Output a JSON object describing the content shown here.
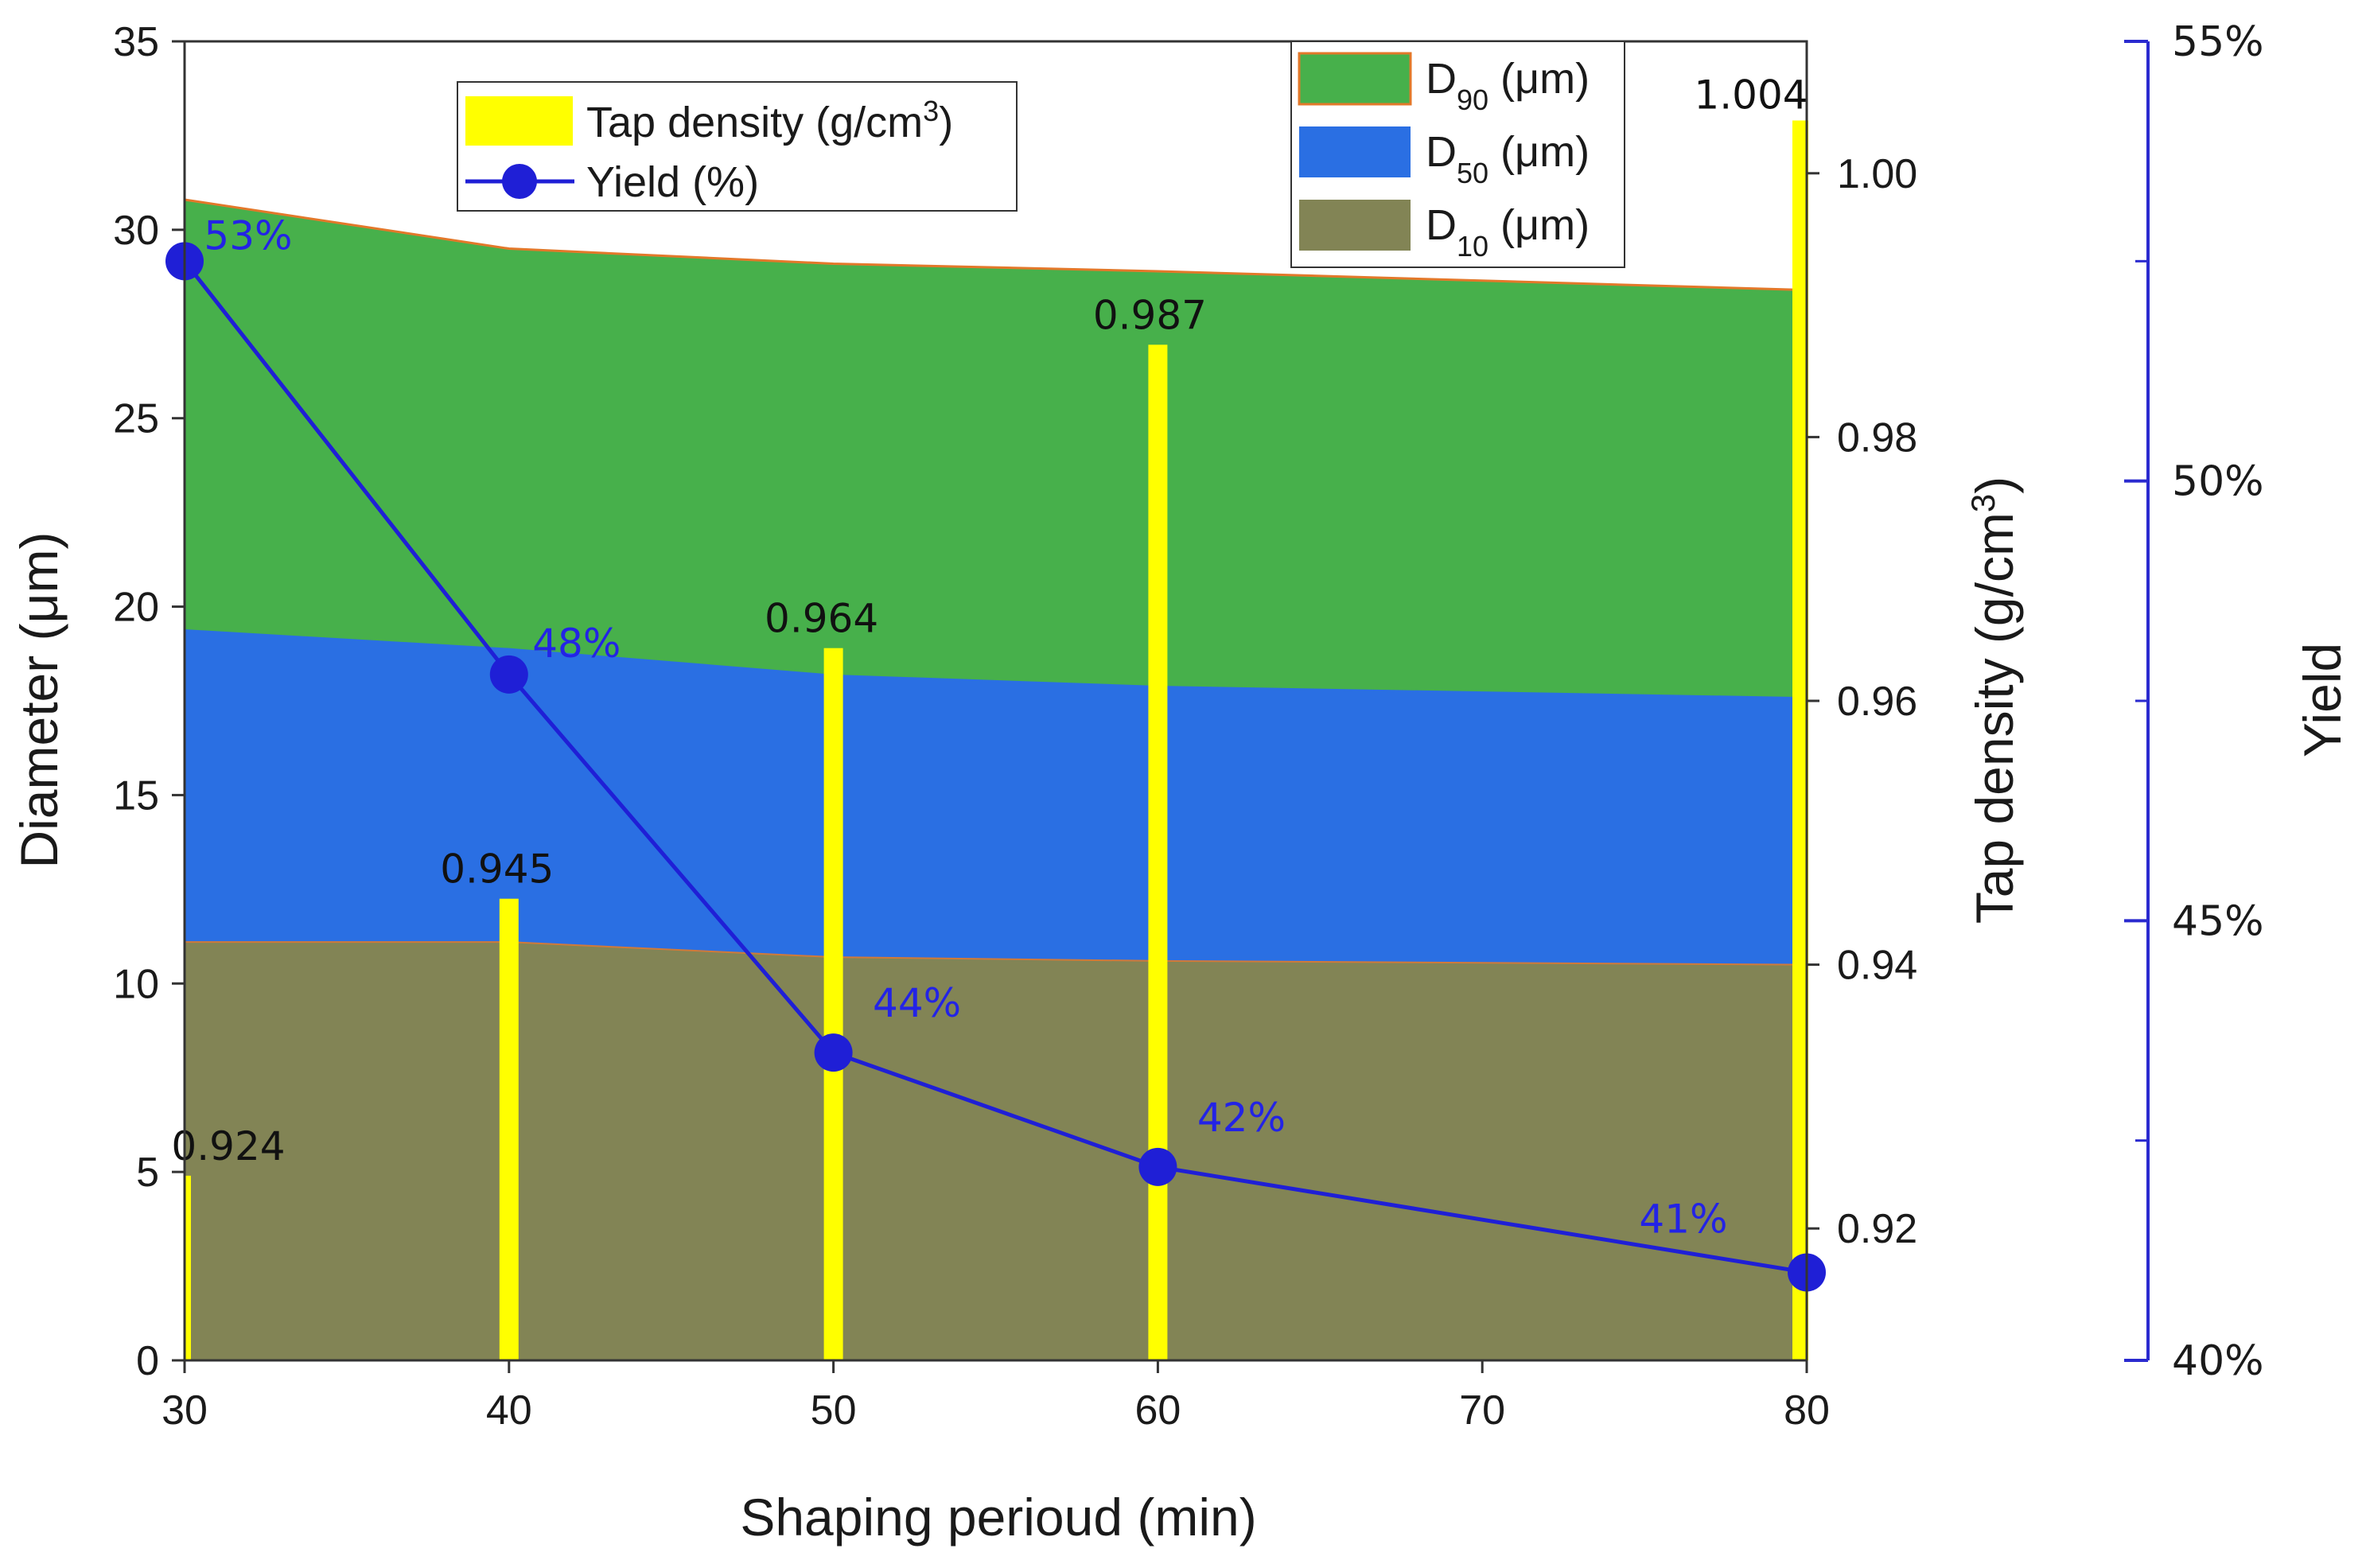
{
  "chart_data": {
    "type": "area",
    "xlabel": "Shaping perioud (min)",
    "ylabel": "Diameter (μm)",
    "y2label": "Tap density (g/cm3)",
    "y3label": "Yield",
    "x": [
      30,
      40,
      50,
      60,
      80
    ],
    "xlim": [
      30,
      80
    ],
    "ylim": [
      0,
      35
    ],
    "y2lim": [
      0.91,
      1.01
    ],
    "y3lim": [
      40,
      55
    ],
    "xticks": [
      "30",
      "40",
      "50",
      "60",
      "70",
      "80"
    ],
    "yticks": [
      "0",
      "5",
      "10",
      "15",
      "20",
      "25",
      "30",
      "35"
    ],
    "y2ticks": [
      "0.92",
      "0.94",
      "0.96",
      "0.98",
      "1.00"
    ],
    "y3ticks": [
      "40%",
      "45%",
      "50%",
      "55%"
    ],
    "area_series": [
      {
        "name": "D90 (μm)",
        "sub": "90",
        "color": "#47b04b",
        "values": [
          30.8,
          29.5,
          29.1,
          28.9,
          28.4
        ]
      },
      {
        "name": "D50 (μm)",
        "sub": "50",
        "color": "#2a6fe3",
        "values": [
          19.4,
          18.9,
          18.2,
          17.9,
          17.6
        ]
      },
      {
        "name": "D10 (μm)",
        "sub": "10",
        "color": "#828455",
        "values": [
          11.1,
          11.1,
          10.7,
          10.6,
          10.5
        ]
      }
    ],
    "bar_series": {
      "name": "Tap density (g/cm3)",
      "color": "#ffff00",
      "x": [
        30,
        40,
        50,
        60,
        80
      ],
      "values": [
        0.924,
        0.945,
        0.964,
        0.987,
        1.004
      ],
      "labels": [
        "0.924",
        "0.945",
        "0.964",
        "0.987",
        "1.004"
      ]
    },
    "line_series": {
      "name": "Yield (%)",
      "color": "#1f1fd6",
      "x": [
        30,
        40,
        50,
        60,
        80
      ],
      "values": [
        52.5,
        47.8,
        43.5,
        42.2,
        41.0
      ],
      "labels": [
        "53%",
        "48%",
        "44%",
        "42%",
        "41%"
      ]
    },
    "legend": {
      "top_left": [
        "Tap density (g/cm",
        "3",
        ")",
        "Yield (%)"
      ],
      "top_right_suffix": "(μm)",
      "position": "top"
    }
  }
}
